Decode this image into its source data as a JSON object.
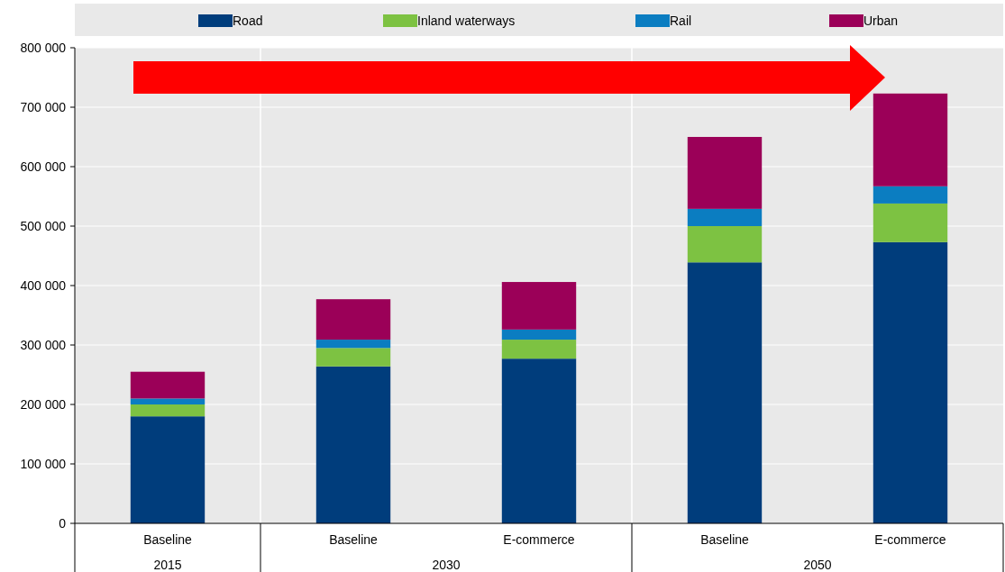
{
  "chart_data": {
    "type": "bar",
    "stacked": true,
    "categories": [
      "Baseline",
      "Baseline",
      "E-commerce",
      "Baseline",
      "E-commerce"
    ],
    "series": [
      {
        "name": "Road",
        "color": "#003d7c",
        "values": [
          180000,
          264000,
          277000,
          439000,
          473000
        ]
      },
      {
        "name": "Inland waterways",
        "color": "#7dc242",
        "values": [
          20000,
          31000,
          32000,
          61000,
          65000
        ]
      },
      {
        "name": "Rail",
        "color": "#0b7dc1",
        "values": [
          10000,
          14000,
          17000,
          29000,
          29000
        ]
      },
      {
        "name": "Urban",
        "color": "#9b0058",
        "values": [
          45000,
          68000,
          80000,
          121000,
          156000
        ]
      }
    ],
    "ylim": [
      0,
      800000
    ],
    "yticks": [
      {
        "value": 0,
        "label": "0"
      },
      {
        "value": 100000,
        "label": "100 000"
      },
      {
        "value": 200000,
        "label": "200 000"
      },
      {
        "value": 300000,
        "label": "300 000"
      },
      {
        "value": 400000,
        "label": "400 000"
      },
      {
        "value": 500000,
        "label": "500 000"
      },
      {
        "value": 600000,
        "label": "600 000"
      },
      {
        "value": 700000,
        "label": "700 000"
      },
      {
        "value": 800000,
        "label": "800 000"
      }
    ],
    "grid": "y",
    "legend": "top",
    "annotations": [
      "2015",
      "2030",
      "2050"
    ]
  }
}
